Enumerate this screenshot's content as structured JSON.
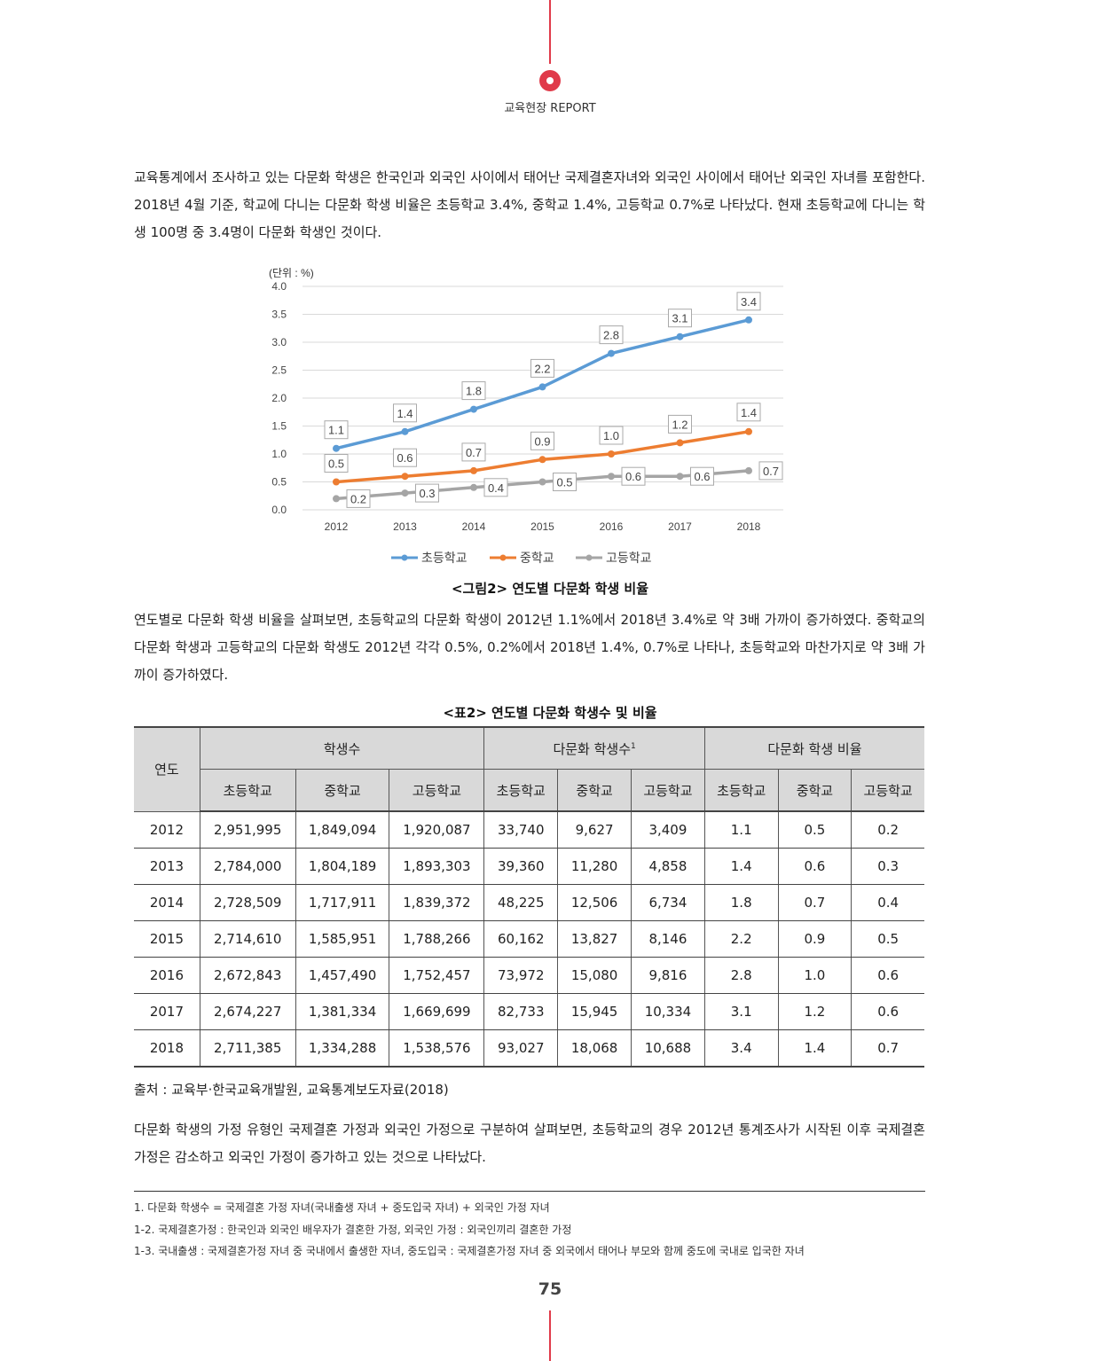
{
  "header": {
    "label": "교육현장 REPORT"
  },
  "paragraphs": {
    "p1": "교육통계에서 조사하고 있는 다문화 학생은 한국인과 외국인 사이에서 태어난 국제결혼자녀와 외국인 사이에서 태어난 외국인 자녀를 포함한다. 2018년 4월 기준, 학교에 다니는 다문화 학생 비율은 초등학교 3.4%, 중학교 1.4%, 고등학교 0.7%로 나타났다. 현재 초등학교에 다니는 학생 100명 중 3.4명이 다문화 학생인 것이다.",
    "p2": "연도별로 다문화 학생 비율을 살펴보면, 초등학교의 다문화 학생이 2012년 1.1%에서 2018년 3.4%로 약 3배 가까이 증가하였다. 중학교의 다문화 학생과 고등학교의 다문화 학생도 2012년 각각 0.5%, 0.2%에서 2018년 1.4%, 0.7%로 나타나, 초등학교와 마찬가지로 약 3배 가까이 증가하였다.",
    "p3": "다문화 학생의 가정 유형인 국제결혼 가정과 외국인 가정으로 구분하여 살펴보면, 초등학교의 경우 2012년 통계조사가 시작된 이후 국제결혼 가정은 감소하고 외국인 가정이 증가하고 있는 것으로 나타났다."
  },
  "figure_caption": "<그림2> 연도별 다문화 학생 비율",
  "chart_data": {
    "type": "line",
    "unit_label": "(단위 : %)",
    "categories": [
      "2012",
      "2013",
      "2014",
      "2015",
      "2016",
      "2017",
      "2018"
    ],
    "ylim": [
      0,
      4.0
    ],
    "yticks": [
      "4.0",
      "3.5",
      "3.0",
      "2.5",
      "2.0",
      "1.5",
      "1.0",
      "0.5",
      "0.0"
    ],
    "grid": true,
    "legend_position": "bottom",
    "series": [
      {
        "name": "초등학교",
        "color": "#5b9bd5",
        "values": [
          1.1,
          1.4,
          1.8,
          2.2,
          2.8,
          3.1,
          3.4
        ],
        "labels": [
          "1.1",
          "1.4",
          "1.8",
          "2.2",
          "2.8",
          "3.1",
          "3.4"
        ]
      },
      {
        "name": "중학교",
        "color": "#ed7d31",
        "values": [
          0.5,
          0.6,
          0.7,
          0.9,
          1.0,
          1.2,
          1.4
        ],
        "labels": [
          "0.5",
          "0.6",
          "0.7",
          "0.9",
          "1.0",
          "1.2",
          "1.4"
        ]
      },
      {
        "name": "고등학교",
        "color": "#a5a5a5",
        "values": [
          0.2,
          0.3,
          0.4,
          0.5,
          0.6,
          0.6,
          0.7
        ],
        "labels": [
          "0.2",
          "0.3",
          "0.4",
          "0.5",
          "0.6",
          "0.6",
          "0.7"
        ]
      }
    ]
  },
  "table": {
    "caption": "<표2> 연도별 다문화 학생수 및 비율",
    "col_year": "연도",
    "groups": {
      "students": "학생수",
      "multicultural": "다문화 학생수",
      "multicultural_sup": "1",
      "ratio": "다문화 학생 비율"
    },
    "subheaders": [
      "초등학교",
      "중학교",
      "고등학교"
    ],
    "rows": [
      [
        "2012",
        "2,951,995",
        "1,849,094",
        "1,920,087",
        "33,740",
        "9,627",
        "3,409",
        "1.1",
        "0.5",
        "0.2"
      ],
      [
        "2013",
        "2,784,000",
        "1,804,189",
        "1,893,303",
        "39,360",
        "11,280",
        "4,858",
        "1.4",
        "0.6",
        "0.3"
      ],
      [
        "2014",
        "2,728,509",
        "1,717,911",
        "1,839,372",
        "48,225",
        "12,506",
        "6,734",
        "1.8",
        "0.7",
        "0.4"
      ],
      [
        "2015",
        "2,714,610",
        "1,585,951",
        "1,788,266",
        "60,162",
        "13,827",
        "8,146",
        "2.2",
        "0.9",
        "0.5"
      ],
      [
        "2016",
        "2,672,843",
        "1,457,490",
        "1,752,457",
        "73,972",
        "15,080",
        "9,816",
        "2.8",
        "1.0",
        "0.6"
      ],
      [
        "2017",
        "2,674,227",
        "1,381,334",
        "1,669,699",
        "82,733",
        "15,945",
        "10,334",
        "3.1",
        "1.2",
        "0.6"
      ],
      [
        "2018",
        "2,711,385",
        "1,334,288",
        "1,538,576",
        "93,027",
        "18,068",
        "10,688",
        "3.4",
        "1.4",
        "0.7"
      ]
    ],
    "source": "출처 : 교육부·한국교육개발원, 교육통계보도자료(2018)"
  },
  "footnotes": [
    "1. 다문화 학생수 = 국제결혼 가정 자녀(국내출생 자녀 + 중도입국 자녀) + 외국인 가정 자녀",
    "1-2. 국제결혼가정 : 한국인과 외국인 배우자가 결혼한 가정, 외국인 가정 : 외국인끼리 결혼한 가정",
    "1-3. 국내출생 : 국제결혼가정 자녀 중 국내에서 출생한 자녀, 중도입국 : 국제결혼가정 자녀 중 외국에서 태어나 부모와 함께 중도에 국내로 입국한 자녀"
  ],
  "page_number": "75"
}
